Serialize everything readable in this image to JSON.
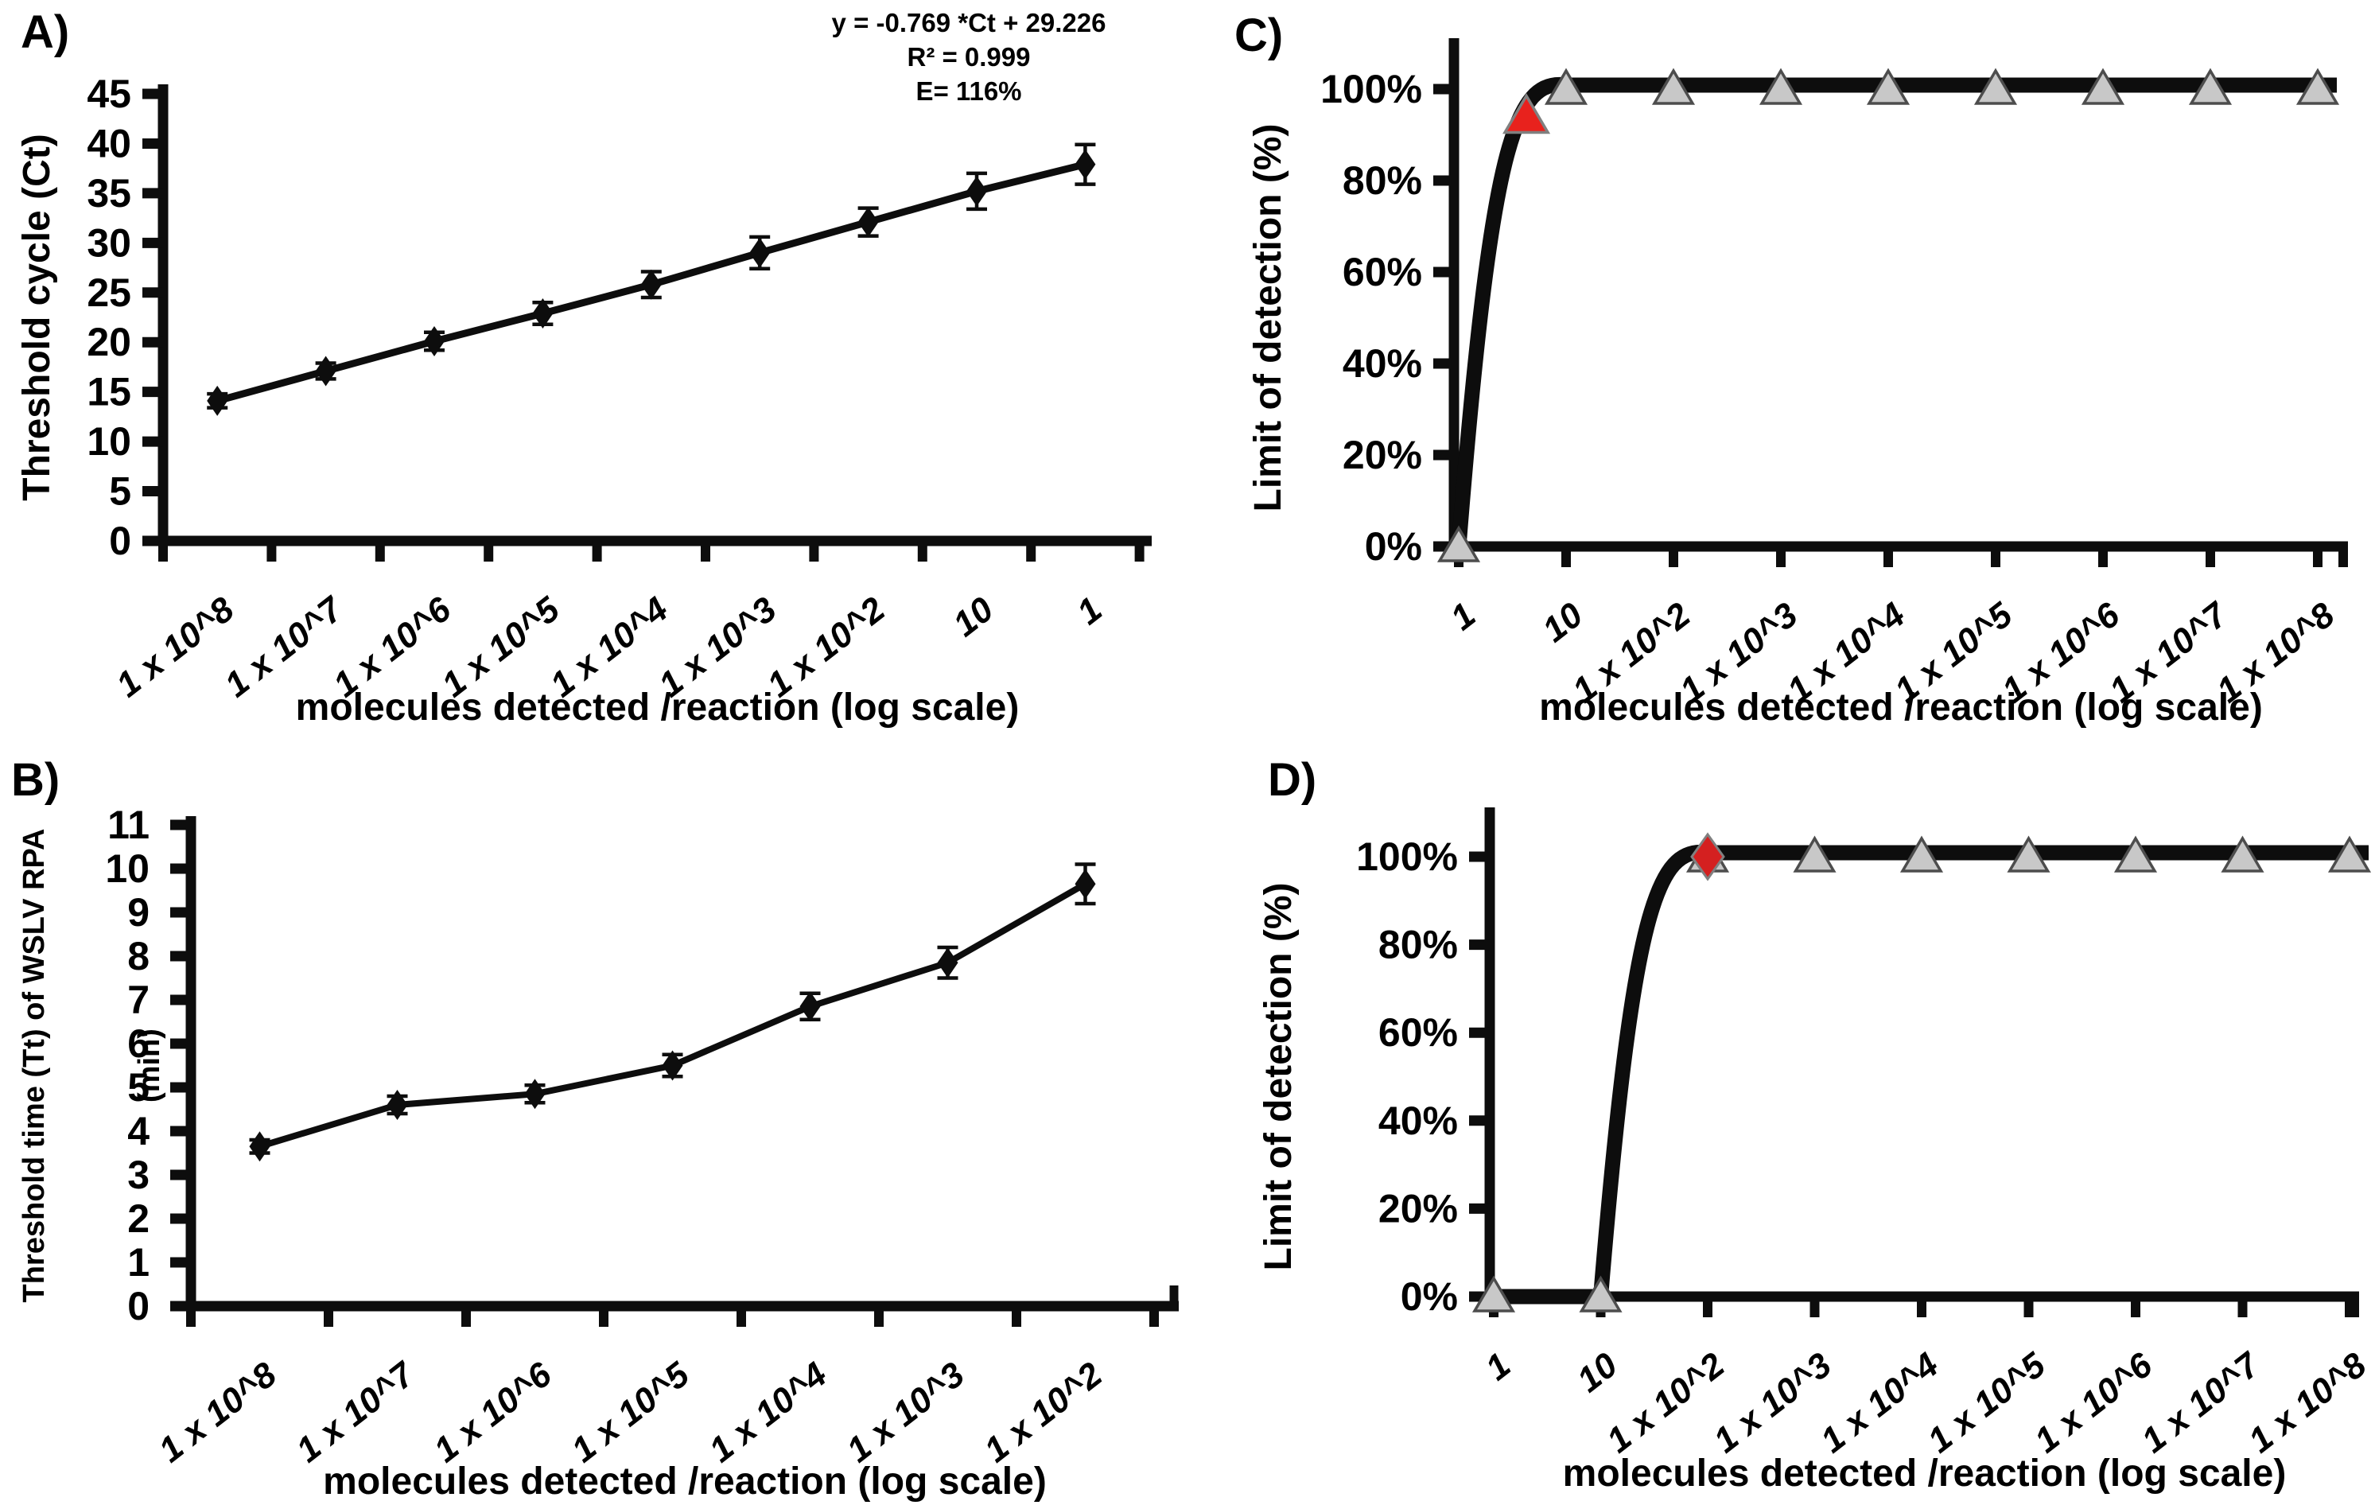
{
  "figure": {
    "background": "#ffffff",
    "panels": [
      {
        "id": "A",
        "label": "A)"
      },
      {
        "id": "B",
        "label": "B)"
      },
      {
        "id": "C",
        "label": "C)"
      },
      {
        "id": "D",
        "label": "D)"
      }
    ]
  },
  "annotation_A": {
    "line1": "y = -0.769 *Ct + 29.226",
    "line2": "R² = 0.999",
    "line3": "E= 116%"
  },
  "colors": {
    "line": "#0d0d0d",
    "text": "#000000",
    "gray_marker_fill": "#c8c8c8",
    "gray_marker_stroke": "#4d4d4d",
    "red_triangle": "#e8221d",
    "red_diamond": "#d42020",
    "red_marker_stroke": "#808080"
  },
  "chart_data": [
    {
      "panel": "A",
      "type": "line",
      "marker": "diamond",
      "error_bars": true,
      "title": "",
      "categories": [
        "1 x 10^8",
        "1 x 10^7",
        "1 x 10^6",
        "1 x 10^5",
        "1 x 10^4",
        "1 x 10^3",
        "1 x 10^2",
        "10",
        "1"
      ],
      "values": [
        14.1,
        17.1,
        20.1,
        22.9,
        25.8,
        29.0,
        32.1,
        35.2,
        37.9
      ],
      "errors": [
        0.7,
        0.8,
        0.9,
        1.1,
        1.3,
        1.6,
        1.4,
        1.8,
        2.0
      ],
      "xlabel": "molecules detected /reaction (log scale)",
      "ylabel": "Threshold cycle (Ct)",
      "ylim": [
        0,
        45
      ],
      "ytick_labels": [
        "45",
        "40",
        "35",
        "30",
        "25",
        "20",
        "15",
        "10",
        "5",
        "0"
      ],
      "grid": false,
      "annotation": [
        "y = -0.769 *Ct + 29.226",
        "R² = 0.999",
        "E= 116%"
      ]
    },
    {
      "panel": "B",
      "type": "line",
      "marker": "diamond",
      "error_bars": true,
      "title": "",
      "categories": [
        "1 x 10^8",
        "1 x 10^7",
        "1 x 10^6",
        "1 x 10^5",
        "1 x 10^4",
        "1 x 10^3",
        "1 x 10^2"
      ],
      "values": [
        3.65,
        4.6,
        4.85,
        5.5,
        6.85,
        7.85,
        9.65
      ],
      "errors": [
        0.15,
        0.2,
        0.2,
        0.25,
        0.3,
        0.35,
        0.45
      ],
      "xlabel": "molecules detected /reaction (log scale)",
      "ylabel": "Threshold time (Tt) of WSLV RPA",
      "ylabel2": "(min)",
      "ylim": [
        0,
        11
      ],
      "ytick_labels": [
        "11",
        "10",
        "9",
        "8",
        "7",
        "6",
        "5",
        "4",
        "3",
        "2",
        "1",
        "0"
      ],
      "grid": false
    },
    {
      "panel": "C",
      "type": "line",
      "marker": "triangle",
      "thick_line": true,
      "title": "",
      "categories": [
        "1",
        "10",
        "1 x 10^2",
        "1 x 10^3",
        "1 x 10^4",
        "1 x 10^5",
        "1 x 10^6",
        "1 x 10^7",
        "1 x 10^8"
      ],
      "values": [
        0,
        100,
        100,
        100,
        100,
        100,
        100,
        100,
        100
      ],
      "xlabel": "molecules detected /reaction (log scale)",
      "ylabel": "Limit of detection (%)",
      "ylim": [
        0,
        100
      ],
      "ytick_labels": [
        "100%",
        "80%",
        "60%",
        "40%",
        "20%",
        "0%"
      ],
      "grid": false,
      "rise": {
        "from_index": 0,
        "to_index": 1
      },
      "red_marker": {
        "shape": "triangle",
        "between_categories": [
          "1",
          "10"
        ],
        "fraction": 0.63,
        "value_pct": 94
      }
    },
    {
      "panel": "D",
      "type": "line",
      "marker": "triangle",
      "thick_line": true,
      "title": "",
      "categories": [
        "1",
        "10",
        "1 x 10^2",
        "1 x 10^3",
        "1 x 10^4",
        "1 x 10^5",
        "1 x 10^6",
        "1 x 10^7",
        "1 x 10^8"
      ],
      "values": [
        0,
        0,
        100,
        100,
        100,
        100,
        100,
        100,
        100
      ],
      "xlabel": "molecules detected /reaction (log scale)",
      "ylabel": "Limit of detection (%)",
      "ylim": [
        0,
        100
      ],
      "ytick_labels": [
        "100%",
        "80%",
        "60%",
        "40%",
        "20%",
        "0%"
      ],
      "grid": false,
      "rise": {
        "from_index": 1,
        "to_index": 2
      },
      "red_marker": {
        "shape": "diamond",
        "at_category": "1 x 10^2",
        "value_pct": 100
      }
    }
  ]
}
